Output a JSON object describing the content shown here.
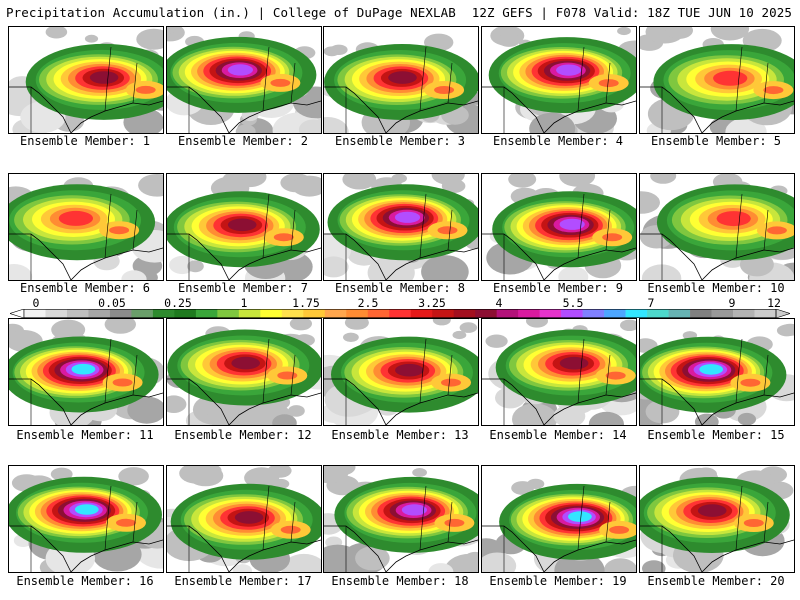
{
  "header": {
    "left": "Precipitation Accumulation (in.) | College of DuPage NEXLAB",
    "right": "12Z GEFS | F078 Valid: 18Z TUE JUN 10 2025"
  },
  "colorbar": {
    "ticks": [
      "0",
      "0.05",
      "0.25",
      "1",
      "1.75",
      "2.5",
      "3.25",
      "4",
      "5.5",
      "7",
      "9",
      "12"
    ],
    "colors": [
      "#f2f2f2",
      "#d9d9d9",
      "#bfbfbf",
      "#a6a6a6",
      "#8c8c8c",
      "#6a9f6a",
      "#2e8b2e",
      "#1f7a1f",
      "#3aa63a",
      "#7fc73f",
      "#c8e63c",
      "#ffff33",
      "#ffe14d",
      "#ffc838",
      "#ffa64d",
      "#ff8c33",
      "#ff6633",
      "#ff3333",
      "#e61919",
      "#c41414",
      "#a30f1f",
      "#8c0f33",
      "#b3127a",
      "#d91a9f",
      "#e633cc",
      "#b24dff",
      "#8080ff",
      "#4da6ff",
      "#33e6ff",
      "#4dd9cc",
      "#66b3b3",
      "#808080",
      "#999999",
      "#b3b3b3",
      "#cccccc"
    ]
  },
  "panels": [
    {
      "label": "Ensemble Member: 1",
      "intensity": 3
    },
    {
      "label": "Ensemble Member: 2",
      "intensity": 4
    },
    {
      "label": "Ensemble Member: 3",
      "intensity": 3
    },
    {
      "label": "Ensemble Member: 4",
      "intensity": 4
    },
    {
      "label": "Ensemble Member: 5",
      "intensity": 2
    },
    {
      "label": "Ensemble Member: 6",
      "intensity": 2
    },
    {
      "label": "Ensemble Member: 7",
      "intensity": 3
    },
    {
      "label": "Ensemble Member: 8",
      "intensity": 4
    },
    {
      "label": "Ensemble Member: 9",
      "intensity": 4
    },
    {
      "label": "Ensemble Member: 10",
      "intensity": 2
    },
    {
      "label": "Ensemble Member: 11",
      "intensity": 5
    },
    {
      "label": "Ensemble Member: 12",
      "intensity": 3
    },
    {
      "label": "Ensemble Member: 13",
      "intensity": 3
    },
    {
      "label": "Ensemble Member: 14",
      "intensity": 3
    },
    {
      "label": "Ensemble Member: 15",
      "intensity": 5
    },
    {
      "label": "Ensemble Member: 16",
      "intensity": 5
    },
    {
      "label": "Ensemble Member: 17",
      "intensity": 3
    },
    {
      "label": "Ensemble Member: 18",
      "intensity": 4
    },
    {
      "label": "Ensemble Member: 19",
      "intensity": 5
    },
    {
      "label": "Ensemble Member: 20",
      "intensity": 3
    }
  ]
}
